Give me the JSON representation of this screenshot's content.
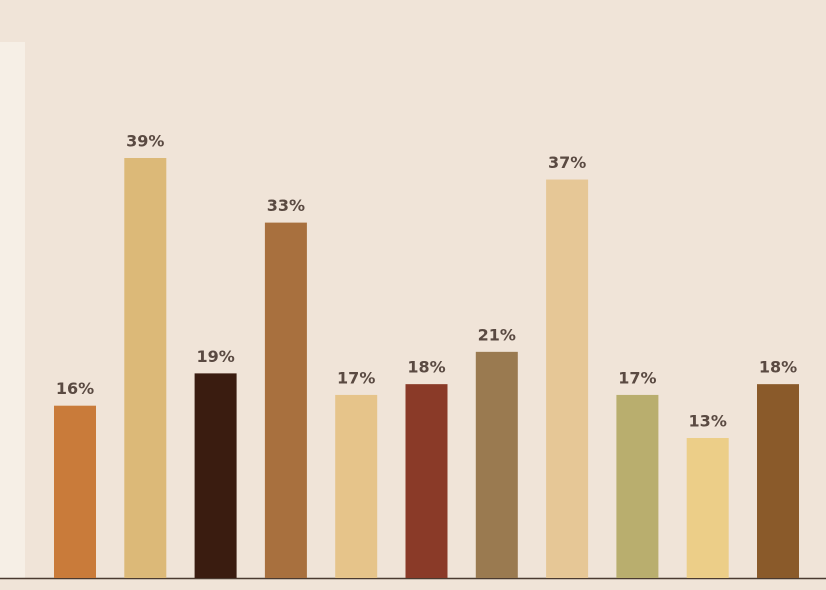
{
  "chart_data": {
    "type": "bar",
    "values": [
      16,
      39,
      19,
      33,
      17,
      18,
      21,
      37,
      17,
      13,
      18
    ],
    "value_labels": [
      "16%",
      "39%",
      "19%",
      "33%",
      "17%",
      "18%",
      "21%",
      "37%",
      "17%",
      "13%",
      "18%"
    ],
    "colors": [
      "#c97b3a",
      "#dcb978",
      "#3a1c10",
      "#a8703e",
      "#e6c48a",
      "#8a3a28",
      "#9a7a50",
      "#e6c796",
      "#b9ae6e",
      "#ecce88",
      "#8a5a2a"
    ]
  }
}
